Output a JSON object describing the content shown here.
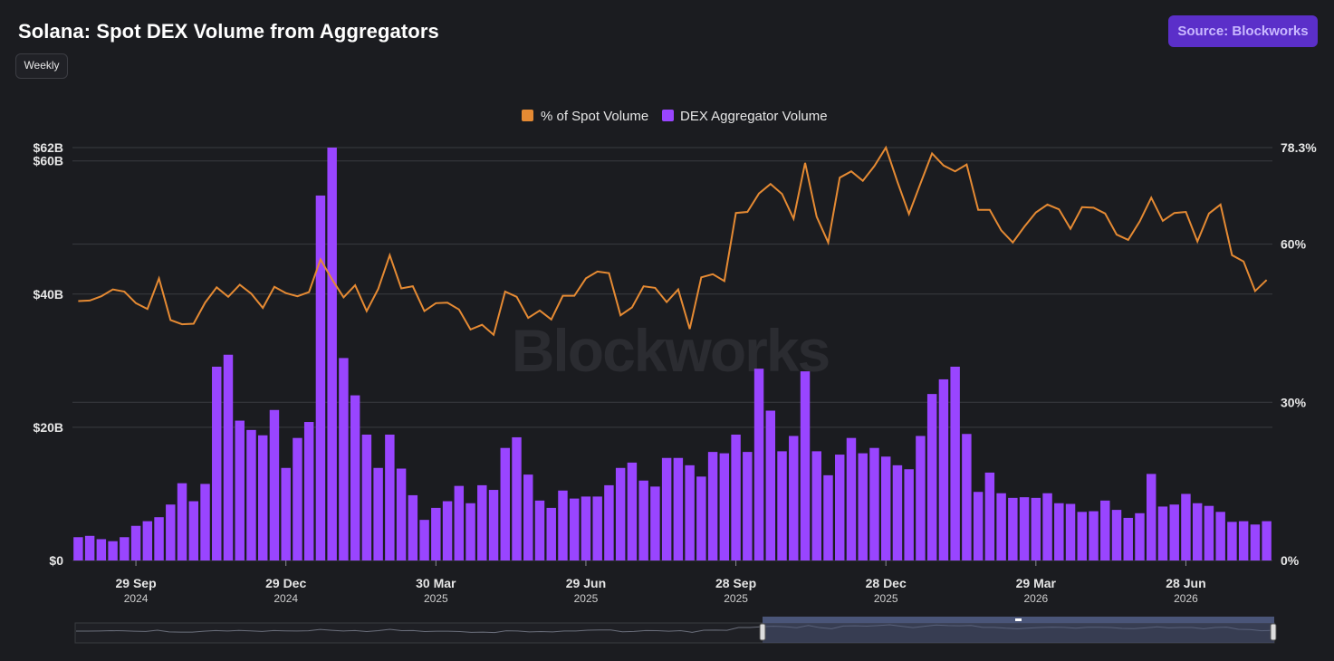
{
  "header": {
    "title": "Solana: Spot DEX Volume from Aggregators",
    "period_label": "Weekly",
    "source_label": "Source: Blockworks"
  },
  "watermark": "Blockworks",
  "colors": {
    "background": "#1b1c20",
    "bar": "#9945ff",
    "line": "#e58a33",
    "grid": "#3a3b40",
    "source_button": "#5b2fc9"
  },
  "chart_data": {
    "type": "bar",
    "title": "Solana: Spot DEX Volume from Aggregators",
    "legend_position": "top-center",
    "grid": true,
    "series": [
      {
        "name": "% of Spot Volume",
        "type": "line",
        "axis": "right",
        "color": "#e58a33",
        "unit": "%",
        "values": [
          49.2,
          49.3,
          50.1,
          51.4,
          51.0,
          48.8,
          47.7,
          53.5,
          45.6,
          44.8,
          44.9,
          48.9,
          51.8,
          50.0,
          52.3,
          50.6,
          47.9,
          51.9,
          50.7,
          50.1,
          50.9,
          57.1,
          53.3,
          49.9,
          52.2,
          47.3,
          51.5,
          57.9,
          51.6,
          52.0,
          47.3,
          48.8,
          48.9,
          47.6,
          43.8,
          44.7,
          42.8,
          51.0,
          50.0,
          46.0,
          47.4,
          45.7,
          50.2,
          50.2,
          53.5,
          54.8,
          54.5,
          46.5,
          48.0,
          52.0,
          51.7,
          49.0,
          51.4,
          43.9,
          53.7,
          54.3,
          53.0,
          65.9,
          66.1,
          69.6,
          71.4,
          69.5,
          64.8,
          75.4,
          65.2,
          60.3,
          72.6,
          73.8,
          72.0,
          74.8,
          78.3,
          71.8,
          65.7,
          71.5,
          77.2,
          74.9,
          73.8,
          75.1,
          66.5,
          66.5,
          62.6,
          60.3,
          63.3,
          66.0,
          67.5,
          66.6,
          62.9,
          67.0,
          66.9,
          65.8,
          61.8,
          60.8,
          64.3,
          68.8,
          64.4,
          65.9,
          66.1,
          60.5,
          65.8,
          67.5,
          57.9,
          56.7,
          51.1,
          53.2
        ]
      },
      {
        "name": "DEX Aggregator Volume",
        "type": "bar",
        "axis": "left",
        "color": "#9945ff",
        "unit": "$B",
        "values": [
          3.5,
          3.7,
          3.2,
          2.9,
          3.5,
          5.2,
          5.9,
          6.5,
          8.4,
          11.6,
          8.9,
          11.5,
          29.1,
          30.9,
          21.0,
          19.6,
          18.8,
          22.6,
          13.9,
          18.4,
          20.8,
          54.8,
          62.0,
          30.4,
          24.8,
          18.9,
          13.9,
          18.9,
          13.8,
          9.8,
          6.1,
          7.9,
          8.9,
          11.2,
          8.6,
          11.3,
          10.6,
          16.9,
          18.5,
          12.9,
          9.0,
          7.9,
          10.5,
          9.3,
          9.6,
          9.6,
          11.3,
          13.9,
          14.7,
          12.0,
          11.1,
          15.4,
          15.4,
          14.3,
          12.6,
          16.3,
          16.1,
          18.9,
          16.3,
          28.8,
          22.5,
          16.4,
          18.7,
          28.4,
          16.4,
          12.8,
          15.9,
          18.4,
          16.1,
          16.9,
          15.6,
          14.3,
          13.7,
          18.7,
          25.0,
          27.2,
          29.1,
          19.0,
          10.3,
          13.2,
          10.1,
          9.4,
          9.5,
          9.4,
          10.1,
          8.6,
          8.5,
          7.3,
          7.4,
          9.0,
          7.6,
          6.4,
          7.1,
          13.0,
          8.1,
          8.4,
          10.0,
          8.6,
          8.2,
          7.3,
          5.8,
          5.9,
          5.4,
          5.9
        ]
      }
    ],
    "y_left": {
      "ylim": [
        0,
        62
      ],
      "ticks": [
        "$0",
        "$20B",
        "$40B",
        "$60B",
        "$62B"
      ],
      "tick_values": [
        0,
        20,
        40,
        60,
        62
      ]
    },
    "y_right": {
      "ylim": [
        0,
        78.3
      ],
      "ticks": [
        "0%",
        "30%",
        "60%",
        "78.3%"
      ],
      "tick_values": [
        0,
        30,
        60,
        78.3
      ]
    },
    "x_ticks": [
      {
        "label": "29 Sep",
        "year": "2024",
        "index": 5
      },
      {
        "label": "29 Dec",
        "year": "2024",
        "index": 18
      },
      {
        "label": "30 Mar",
        "year": "2025",
        "index": 31
      },
      {
        "label": "29 Jun",
        "year": "2025",
        "index": 44
      },
      {
        "label": "28 Sep",
        "year": "2025",
        "index": 57
      },
      {
        "label": "28 Dec",
        "year": "2025",
        "index": 70
      },
      {
        "label": "29 Mar",
        "year": "2026",
        "index": 83
      },
      {
        "label": "28 Jun",
        "year": "2026",
        "index": 96
      }
    ]
  }
}
